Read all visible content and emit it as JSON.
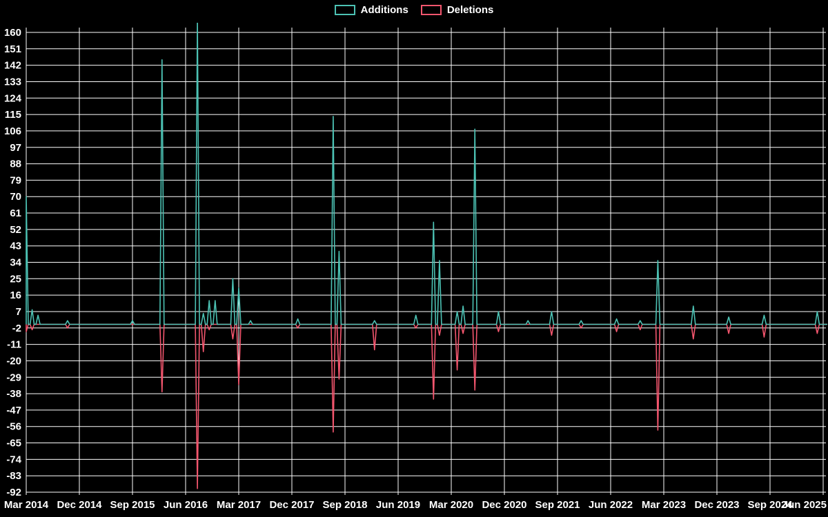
{
  "chart_data": {
    "type": "line",
    "title": "",
    "xlabel": "",
    "ylabel": "",
    "background": "#000000",
    "grid": true,
    "grid_color": "#ffffff",
    "text_color": "#ffffff",
    "legend_position": "top-center",
    "x_tick_labels": [
      "Mar 2014",
      "Dec 2014",
      "Sep 2015",
      "Jun 2016",
      "Mar 2017",
      "Dec 2017",
      "Sep 2018",
      "Jun 2019",
      "Mar 2020",
      "Dec 2020",
      "Sep 2021",
      "Jun 2022",
      "Mar 2023",
      "Dec 2023",
      "Sep 2024",
      "Jun 2025"
    ],
    "x_tick_step_months": 9,
    "x_start": "Mar 2014",
    "x_total_months": 135,
    "y_ticks": [
      160,
      151,
      142,
      133,
      124,
      115,
      106,
      97,
      88,
      79,
      70,
      61,
      52,
      43,
      34,
      25,
      16,
      7,
      -2,
      -11,
      -20,
      -29,
      -38,
      -47,
      -56,
      -65,
      -74,
      -83,
      -92
    ],
    "ylim": [
      -92,
      160
    ],
    "baseline_value": 0,
    "series": [
      {
        "name": "Additions",
        "color": "#4cc2b4",
        "baseline": 0,
        "spikes": [
          [
            0,
            70
          ],
          [
            1,
            8
          ],
          [
            2,
            5
          ],
          [
            7,
            2
          ],
          [
            18,
            2
          ],
          [
            23,
            145
          ],
          [
            29,
            168
          ],
          [
            30,
            6
          ],
          [
            31,
            13
          ],
          [
            32,
            13
          ],
          [
            35,
            25
          ],
          [
            36,
            20
          ],
          [
            38,
            2
          ],
          [
            46,
            3
          ],
          [
            52,
            114
          ],
          [
            53,
            40
          ],
          [
            59,
            2
          ],
          [
            66,
            5
          ],
          [
            69,
            56
          ],
          [
            70,
            35
          ],
          [
            73,
            7
          ],
          [
            74,
            10
          ],
          [
            76,
            107
          ],
          [
            80,
            7
          ],
          [
            85,
            2
          ],
          [
            89,
            7
          ],
          [
            94,
            2
          ],
          [
            100,
            3
          ],
          [
            104,
            2
          ],
          [
            107,
            35
          ],
          [
            113,
            10
          ],
          [
            119,
            4
          ],
          [
            125,
            5
          ],
          [
            134,
            7
          ]
        ]
      },
      {
        "name": "Deletions",
        "color": "#f4566e",
        "baseline": 0,
        "spikes": [
          [
            0,
            -4
          ],
          [
            1,
            -3
          ],
          [
            7,
            -2
          ],
          [
            23,
            -37
          ],
          [
            29,
            -90
          ],
          [
            30,
            -15
          ],
          [
            31,
            -3
          ],
          [
            35,
            -8
          ],
          [
            36,
            -33
          ],
          [
            46,
            -2
          ],
          [
            52,
            -59
          ],
          [
            53,
            -30
          ],
          [
            59,
            -14
          ],
          [
            66,
            -2
          ],
          [
            69,
            -41
          ],
          [
            70,
            -6
          ],
          [
            73,
            -25
          ],
          [
            74,
            -5
          ],
          [
            76,
            -36
          ],
          [
            80,
            -4
          ],
          [
            89,
            -6
          ],
          [
            94,
            -2
          ],
          [
            100,
            -4
          ],
          [
            104,
            -3
          ],
          [
            107,
            -58
          ],
          [
            113,
            -8
          ],
          [
            119,
            -5
          ],
          [
            125,
            -7
          ],
          [
            134,
            -5
          ]
        ]
      }
    ]
  }
}
